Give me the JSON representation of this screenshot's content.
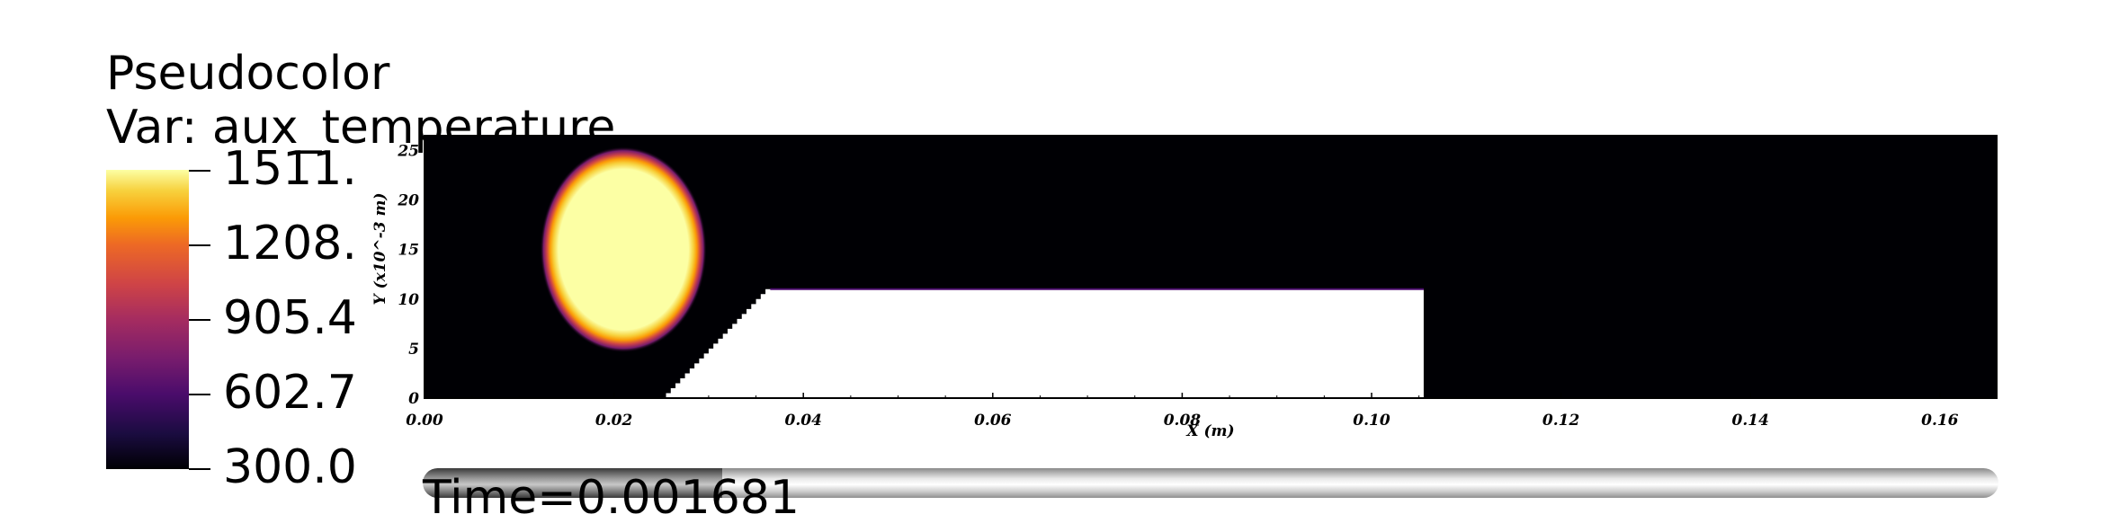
{
  "legend": {
    "title": "Pseudocolor",
    "variable": "Var: aux_temperature",
    "ticks": [
      "1511.",
      "1208.",
      "905.4",
      "602.7",
      "300.0"
    ],
    "colormap": [
      "#000004",
      "#1b0c41",
      "#4a0c6b",
      "#781c6d",
      "#a52c60",
      "#cf4446",
      "#ed6925",
      "#fb9b06",
      "#f7d13d",
      "#fcffa4"
    ]
  },
  "plot": {
    "x_label": "X (m)",
    "y_label": "Y (x10^-3 m)",
    "x_ticks": [
      "0.00",
      "0.02",
      "0.04",
      "0.06",
      "0.08",
      "0.10",
      "0.12",
      "0.14",
      "0.16"
    ],
    "y_ticks": [
      "0",
      "5",
      "10",
      "15",
      "20",
      "25"
    ],
    "x_range": [
      0.0,
      0.166
    ],
    "y_range": [
      0.0,
      26.5
    ],
    "background_color": "#000004",
    "hot_color": "#fcffa4",
    "hot_spot": {
      "center_x": 0.021,
      "center_y": 15.0,
      "radius_x": 0.0088,
      "radius_y": 10.4
    },
    "obstacle": {
      "x_start": 0.0255,
      "x_ramp_end": 0.0365,
      "x_end": 0.1055,
      "y_top": 11.0
    }
  },
  "time": {
    "label": "Time=0.001681",
    "progress": 0.19
  }
}
